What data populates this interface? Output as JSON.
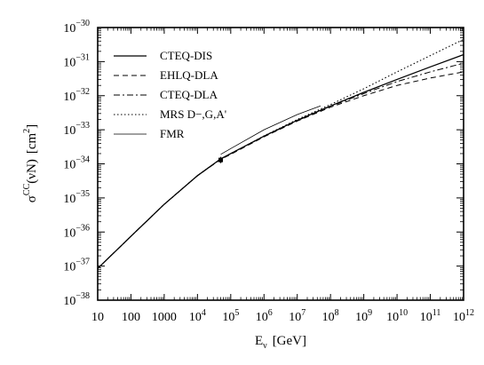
{
  "chart_data": {
    "type": "line",
    "title": "",
    "xlabel_base": "E",
    "xlabel_sub": "ν",
    "xlabel_unit": "[GeV]",
    "ylabel_base": "σ",
    "ylabel_sup": "CC",
    "ylabel_arg": "(νN)",
    "ylabel_unit_pre": "[cm",
    "ylabel_unit_exp": "2",
    "ylabel_unit_post": "]",
    "x_scale": "log",
    "y_scale": "log",
    "xlim": [
      10,
      1000000000000.0
    ],
    "ylim": [
      1e-38,
      1e-30
    ],
    "x_ticks": [
      {
        "value": 10,
        "label": "10"
      },
      {
        "value": 100,
        "label": "100"
      },
      {
        "value": 1000,
        "label": "1000"
      },
      {
        "value": 10000.0,
        "base": "10",
        "exp": "4"
      },
      {
        "value": 100000.0,
        "base": "10",
        "exp": "5"
      },
      {
        "value": 1000000.0,
        "base": "10",
        "exp": "6"
      },
      {
        "value": 10000000.0,
        "base": "10",
        "exp": "7"
      },
      {
        "value": 100000000.0,
        "base": "10",
        "exp": "8"
      },
      {
        "value": 1000000000.0,
        "base": "10",
        "exp": "9"
      },
      {
        "value": 10000000000.0,
        "base": "10",
        "exp": "10"
      },
      {
        "value": 100000000000.0,
        "base": "10",
        "exp": "11"
      },
      {
        "value": 1000000000000.0,
        "base": "10",
        "exp": "12"
      }
    ],
    "y_ticks": [
      {
        "value": 1e-38,
        "base": "10",
        "exp": "−38"
      },
      {
        "value": 1e-37,
        "base": "10",
        "exp": "−37"
      },
      {
        "value": 1e-36,
        "base": "10",
        "exp": "−36"
      },
      {
        "value": 1e-35,
        "base": "10",
        "exp": "−35"
      },
      {
        "value": 1e-34,
        "base": "10",
        "exp": "−34"
      },
      {
        "value": 1e-33,
        "base": "10",
        "exp": "−33"
      },
      {
        "value": 1e-32,
        "base": "10",
        "exp": "−32"
      },
      {
        "value": 1e-31,
        "base": "10",
        "exp": "−31"
      },
      {
        "value": 1e-30,
        "base": "10",
        "exp": "−30"
      }
    ],
    "legend_position": "top-left",
    "series": [
      {
        "name": "CTEQ-DIS",
        "style": "solid",
        "x": [
          10,
          100,
          1000,
          10000.0,
          50000.0,
          100000.0,
          1000000.0,
          10000000.0,
          100000000.0,
          1000000000.0,
          10000000000.0,
          100000000000.0,
          1000000000000.0
        ],
        "y": [
          8.5e-38,
          7.5e-37,
          6.5e-36,
          4.5e-35,
          1.4e-34,
          2e-34,
          6.5e-34,
          1.9e-33,
          5e-33,
          1.25e-32,
          3e-32,
          7e-32,
          1.6e-31
        ]
      },
      {
        "name": "EHLQ-DLA",
        "style": "dashed",
        "x": [
          10,
          100,
          1000,
          10000.0,
          50000.0,
          100000.0,
          1000000.0,
          10000000.0,
          100000000.0,
          1000000000.0,
          10000000000.0,
          100000000000.0,
          1000000000000.0
        ],
        "y": [
          8.5e-38,
          7.5e-37,
          6.5e-36,
          4.5e-35,
          1.35e-34,
          1.9e-34,
          6.2e-34,
          1.8e-33,
          4.6e-33,
          1e-32,
          2e-32,
          3.3e-32,
          5e-32
        ]
      },
      {
        "name": "CTEQ-DLA",
        "style": "dashdot",
        "x": [
          10,
          100,
          1000,
          10000.0,
          50000.0,
          100000.0,
          1000000.0,
          10000000.0,
          100000000.0,
          1000000000.0,
          10000000000.0,
          100000000000.0,
          1000000000000.0
        ],
        "y": [
          8.5e-38,
          7.5e-37,
          6.5e-36,
          4.5e-35,
          1.4e-34,
          2e-34,
          6.4e-34,
          1.85e-33,
          4.9e-33,
          1.15e-32,
          2.6e-32,
          5e-32,
          9e-32
        ]
      },
      {
        "name": "MRS D−,G,A'",
        "style": "dotted",
        "x": [
          10,
          100,
          1000,
          10000.0,
          50000.0,
          100000.0,
          1000000.0,
          10000000.0,
          100000000.0,
          1000000000.0,
          10000000000.0,
          100000000000.0,
          1000000000000.0
        ],
        "y": [
          8.5e-38,
          7.5e-37,
          6.5e-36,
          4.5e-35,
          1.4e-34,
          2e-34,
          6.6e-34,
          2e-33,
          5.5e-33,
          1.6e-32,
          5e-32,
          1.5e-31,
          4.5e-31
        ]
      },
      {
        "name": "FMR",
        "style": "solid-thin",
        "x": [
          50000.0,
          100000.0,
          1000000.0,
          10000000.0,
          50000000.0
        ],
        "y": [
          1.9e-34,
          2.8e-34,
          1e-33,
          2.8e-33,
          5e-33
        ]
      }
    ],
    "data_point": {
      "x": 50000.0,
      "y": 1.3e-34,
      "y_low": 1.05e-34,
      "y_high": 1.6e-34
    }
  }
}
